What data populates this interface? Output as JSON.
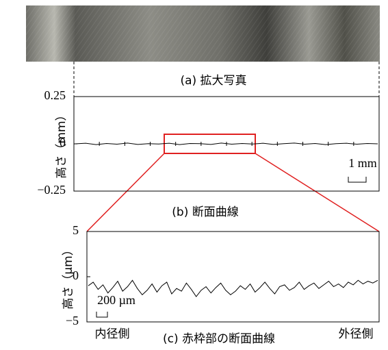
{
  "photo": {
    "caption": "(a) 拡大写真"
  },
  "chart_data": [
    {
      "type": "line",
      "title": "(b) 断面曲線",
      "y_label": "高さ（mm）",
      "ylim": [
        -0.25,
        0.25
      ],
      "yticks": [
        0.25,
        0,
        {
          "value": -0.25,
          "label": "−0.25"
        }
      ],
      "color": "#000000",
      "grid": false,
      "annotations": [
        "1 mm"
      ],
      "values": [
        0,
        0.003,
        -0.004,
        0.002,
        -0.002,
        0.004,
        -0.003,
        0.001,
        -0.001,
        0.003,
        -0.004,
        0.002,
        0.001,
        -0.003,
        0.004,
        -0.002,
        0.002,
        -0.001,
        0.003,
        -0.003,
        0.001,
        0.004,
        -0.002,
        0.002,
        -0.004,
        0.001,
        0.003,
        -0.002,
        0.002,
        0
      ]
    },
    {
      "type": "line",
      "title": "(c) 赤枠部の断面曲線",
      "y_label": "高さ（µm）",
      "ylim": [
        -5,
        5
      ],
      "yticks": [
        5,
        0,
        {
          "value": -5,
          "label": "−5"
        }
      ],
      "color": "#000000",
      "grid": false,
      "annotations": [
        "200 µm",
        "内径側",
        "外径側"
      ],
      "values": [
        -1.0,
        -0.6,
        -1.4,
        -0.9,
        -1.8,
        -1.2,
        -0.5,
        -1.6,
        -1.1,
        -0.4,
        -1.3,
        -2.0,
        -1.5,
        -0.8,
        -1.7,
        -1.0,
        -0.6,
        -1.9,
        -1.3,
        -1.6,
        -0.7,
        -1.4,
        -2.2,
        -1.5,
        -1.1,
        -1.8,
        -1.2,
        -0.7,
        -1.5,
        -2.0,
        -1.6,
        -1.0,
        -1.4,
        -0.8,
        -1.7,
        -1.2,
        -0.6,
        -1.3,
        -1.9,
        -1.1,
        -0.9,
        -1.5,
        -1.2,
        -0.6,
        -1.4,
        -1.0,
        -0.7,
        -1.3,
        -0.9,
        -0.5,
        -1.1,
        -0.8,
        -1.2,
        -0.6,
        -0.9,
        -0.4,
        -0.8,
        -0.5,
        -0.7,
        -0.4
      ]
    }
  ]
}
